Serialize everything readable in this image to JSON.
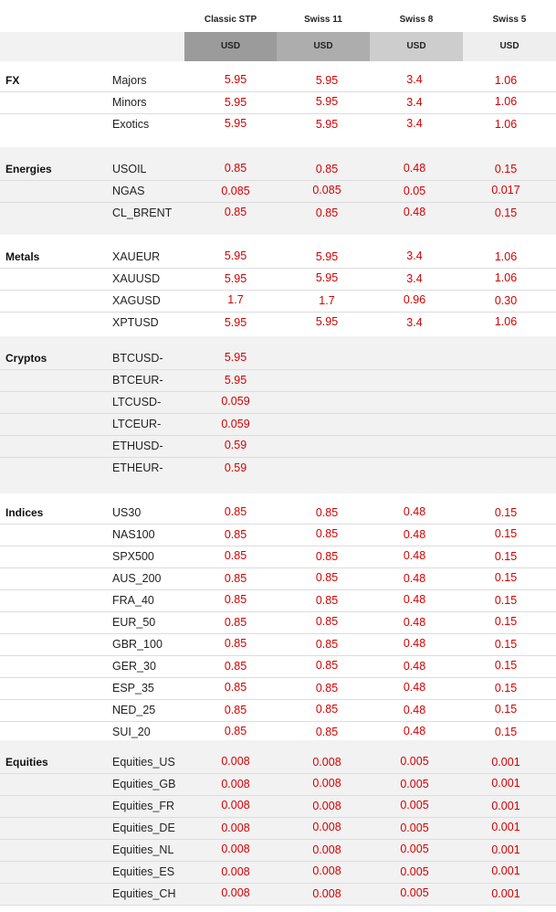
{
  "columns": [
    {
      "name": "Classic STP",
      "currency": "USD",
      "color": "#9b9b9b"
    },
    {
      "name": "Swiss 11",
      "currency": "USD",
      "color": "#adadad"
    },
    {
      "name": "Swiss 8",
      "currency": "USD",
      "color": "#cdcdcd"
    },
    {
      "name": "Swiss 5",
      "currency": "USD",
      "color": "#eeeeee"
    }
  ],
  "sections": [
    {
      "category": "FX",
      "rows": [
        {
          "instrument": "Majors",
          "values": [
            "5.95",
            "5.95",
            "3.4",
            "1.06"
          ]
        },
        {
          "instrument": "Minors",
          "values": [
            "5.95",
            "5.95",
            "3.4",
            "1.06"
          ]
        },
        {
          "instrument": "Exotics",
          "values": [
            "5.95",
            "5.95",
            "3.4",
            "1.06"
          ]
        }
      ]
    },
    {
      "category": "Energies",
      "rows": [
        {
          "instrument": "USOIL",
          "values": [
            "0.85",
            "0.85",
            "0.48",
            "0.15"
          ]
        },
        {
          "instrument": "NGAS",
          "values": [
            "0.085",
            "0.085",
            "0.05",
            "0.017"
          ]
        },
        {
          "instrument": "CL_BRENT",
          "values": [
            "0.85",
            "0.85",
            "0.48",
            "0.15"
          ]
        }
      ]
    },
    {
      "category": "Metals",
      "rows": [
        {
          "instrument": "XAUEUR",
          "values": [
            "5.95",
            "5.95",
            "3.4",
            "1.06"
          ]
        },
        {
          "instrument": "XAUUSD",
          "values": [
            "5.95",
            "5.95",
            "3.4",
            "1.06"
          ]
        },
        {
          "instrument": "XAGUSD",
          "values": [
            "1.7",
            "1.7",
            "0.96",
            "0.30"
          ]
        },
        {
          "instrument": "XPTUSD",
          "values": [
            "5.95",
            "5.95",
            "3.4",
            "1.06"
          ]
        }
      ]
    },
    {
      "category": "Cryptos",
      "rows": [
        {
          "instrument": "BTCUSD-",
          "values": [
            "5.95",
            "",
            "",
            ""
          ]
        },
        {
          "instrument": "BTCEUR-",
          "values": [
            "5.95",
            "",
            "",
            ""
          ]
        },
        {
          "instrument": "LTCUSD-",
          "values": [
            "0.059",
            "",
            "",
            ""
          ]
        },
        {
          "instrument": "LTCEUR-",
          "values": [
            "0.059",
            "",
            "",
            ""
          ]
        },
        {
          "instrument": "ETHUSD-",
          "values": [
            "0.59",
            "",
            "",
            ""
          ]
        },
        {
          "instrument": "ETHEUR-",
          "values": [
            "0.59",
            "",
            "",
            ""
          ]
        }
      ]
    },
    {
      "category": "Indices",
      "rows": [
        {
          "instrument": "US30",
          "values": [
            "0.85",
            "0.85",
            "0.48",
            "0.15"
          ]
        },
        {
          "instrument": "NAS100",
          "values": [
            "0.85",
            "0.85",
            "0.48",
            "0.15"
          ]
        },
        {
          "instrument": "SPX500",
          "values": [
            "0.85",
            "0.85",
            "0.48",
            "0.15"
          ]
        },
        {
          "instrument": "AUS_200",
          "values": [
            "0.85",
            "0.85",
            "0.48",
            "0.15"
          ]
        },
        {
          "instrument": "FRA_40",
          "values": [
            "0.85",
            "0.85",
            "0.48",
            "0.15"
          ]
        },
        {
          "instrument": "EUR_50",
          "values": [
            "0.85",
            "0.85",
            "0.48",
            "0.15"
          ]
        },
        {
          "instrument": "GBR_100",
          "values": [
            "0.85",
            "0.85",
            "0.48",
            "0.15"
          ]
        },
        {
          "instrument": "GER_30",
          "values": [
            "0.85",
            "0.85",
            "0.48",
            "0.15"
          ]
        },
        {
          "instrument": "ESP_35",
          "values": [
            "0.85",
            "0.85",
            "0.48",
            "0.15"
          ]
        },
        {
          "instrument": "NED_25",
          "values": [
            "0.85",
            "0.85",
            "0.48",
            "0.15"
          ]
        },
        {
          "instrument": "SUI_20",
          "values": [
            "0.85",
            "0.85",
            "0.48",
            "0.15"
          ]
        }
      ]
    },
    {
      "category": "Equities",
      "rows": [
        {
          "instrument": "Equities_US",
          "values": [
            "0.008",
            "0.008",
            "0.005",
            "0.001"
          ]
        },
        {
          "instrument": "Equities_GB",
          "values": [
            "0.008",
            "0.008",
            "0.005",
            "0.001"
          ]
        },
        {
          "instrument": "Equities_FR",
          "values": [
            "0.008",
            "0.008",
            "0.005",
            "0.001"
          ]
        },
        {
          "instrument": "Equities_DE",
          "values": [
            "0.008",
            "0.008",
            "0.005",
            "0.001"
          ]
        },
        {
          "instrument": "Equities_NL",
          "values": [
            "0.008",
            "0.008",
            "0.005",
            "0.001"
          ]
        },
        {
          "instrument": "Equities_ES",
          "values": [
            "0.008",
            "0.008",
            "0.005",
            "0.001"
          ]
        },
        {
          "instrument": "Equities_CH",
          "values": [
            "0.008",
            "0.008",
            "0.005",
            "0.001"
          ]
        }
      ]
    }
  ]
}
